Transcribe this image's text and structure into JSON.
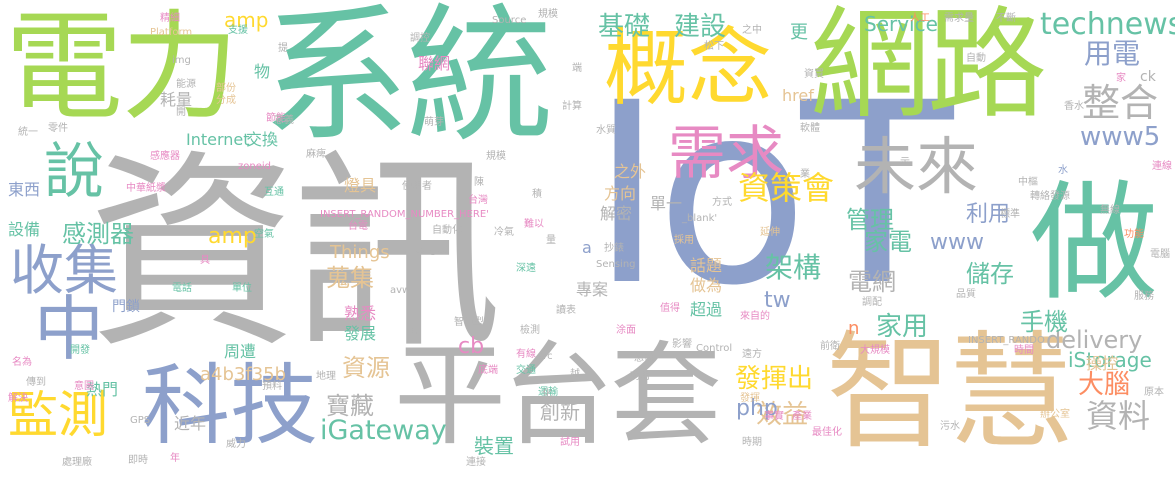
{
  "palette": {
    "green_teal": "#66c2a5",
    "lime": "#a6d854",
    "gold": "#ffd92f",
    "tan": "#e5c494",
    "gray": "#b3b3b3",
    "blue": "#8da0cb",
    "pink": "#e78ac3",
    "orange": "#fc8d62"
  },
  "words": [
    {
      "text": "資訊",
      "color": "gray"
    },
    {
      "text": "IoT",
      "color": "blue"
    },
    {
      "text": "系統",
      "color": "green_teal"
    },
    {
      "text": "電力",
      "color": "lime"
    },
    {
      "text": "網路",
      "color": "lime"
    },
    {
      "text": "平台套",
      "color": "gray"
    },
    {
      "text": "智慧",
      "color": "tan"
    },
    {
      "text": "概念",
      "color": "gold"
    },
    {
      "text": "做",
      "color": "green_teal"
    },
    {
      "text": "科技",
      "color": "blue"
    },
    {
      "text": "中",
      "color": "blue"
    },
    {
      "text": "需求",
      "color": "pink"
    },
    {
      "text": "未來",
      "color": "gray"
    },
    {
      "text": "收集",
      "color": "blue"
    },
    {
      "text": "說",
      "color": "green_teal"
    },
    {
      "text": "監測",
      "color": "gold"
    },
    {
      "text": "整合",
      "color": "gray"
    },
    {
      "text": "資策會",
      "color": "gold"
    },
    {
      "text": "基礎",
      "color": "green_teal"
    },
    {
      "text": "建設",
      "color": "green_teal"
    },
    {
      "text": "technews",
      "color": "green_teal"
    },
    {
      "text": "用電",
      "color": "blue"
    },
    {
      "text": "www5",
      "color": "blue"
    },
    {
      "text": "iGateway",
      "color": "green_teal"
    },
    {
      "text": "資料",
      "color": "gray"
    },
    {
      "text": "架構",
      "color": "green_teal"
    },
    {
      "text": "大腦",
      "color": "orange"
    },
    {
      "text": "delivery",
      "color": "gray"
    },
    {
      "text": "手機",
      "color": "green_teal"
    },
    {
      "text": "家用",
      "color": "green_teal"
    },
    {
      "text": "www",
      "color": "blue"
    },
    {
      "text": "發揮出",
      "color": "gold"
    },
    {
      "text": "寶藏",
      "color": "gray"
    },
    {
      "text": "資源",
      "color": "tan"
    },
    {
      "text": "效益",
      "color": "tan"
    },
    {
      "text": "php",
      "color": "blue"
    },
    {
      "text": "cb",
      "color": "pink"
    },
    {
      "text": "感測器",
      "color": "green_teal"
    },
    {
      "text": "儲存",
      "color": "green_teal"
    },
    {
      "text": "管理",
      "color": "green_teal"
    },
    {
      "text": "家電",
      "color": "green_teal"
    },
    {
      "text": "利用",
      "color": "blue"
    },
    {
      "text": "電網",
      "color": "gray"
    },
    {
      "text": "amp",
      "color": "gold"
    },
    {
      "text": "amp",
      "color": "gold"
    },
    {
      "text": "Service",
      "color": "green_teal"
    },
    {
      "text": "iStorage",
      "color": "green_teal"
    },
    {
      "text": "蒐集",
      "color": "tan"
    },
    {
      "text": "tw",
      "color": "blue"
    },
    {
      "text": "更",
      "color": "green_teal"
    },
    {
      "text": "創新",
      "color": "gray"
    },
    {
      "text": "裝置",
      "color": "green_teal"
    },
    {
      "text": "近年",
      "color": "gray"
    },
    {
      "text": "東西",
      "color": "blue"
    },
    {
      "text": "設備",
      "color": "green_teal"
    },
    {
      "text": "a4b3f35b",
      "color": "tan"
    },
    {
      "text": "周遭",
      "color": "green_teal"
    },
    {
      "text": "熱門",
      "color": "green_teal"
    },
    {
      "text": "燈具",
      "color": "tan"
    },
    {
      "text": "Things",
      "color": "tan"
    },
    {
      "text": "Internet",
      "color": "green_teal"
    },
    {
      "text": "交換",
      "color": "green_teal"
    },
    {
      "text": "耗量",
      "color": "gray"
    },
    {
      "text": "熟悉",
      "color": "pink"
    },
    {
      "text": "發展",
      "color": "green_teal"
    },
    {
      "text": "門鎖",
      "color": "blue"
    },
    {
      "text": "專案",
      "color": "gray"
    },
    {
      "text": "解密",
      "color": "gray"
    },
    {
      "text": "方向",
      "color": "tan"
    },
    {
      "text": "之外",
      "color": "tan"
    },
    {
      "text": "單一",
      "color": "gray"
    },
    {
      "text": "話題",
      "color": "tan"
    },
    {
      "text": "做為",
      "color": "tan"
    },
    {
      "text": "超過",
      "color": "green_teal"
    },
    {
      "text": "操控",
      "color": "tan"
    },
    {
      "text": "n",
      "color": "orange"
    },
    {
      "text": "href",
      "color": "tan"
    },
    {
      "text": "ck",
      "color": "gray"
    },
    {
      "text": "物",
      "color": "green_teal"
    },
    {
      "text": "聯網",
      "color": "pink"
    },
    {
      "text": "a",
      "color": "blue"
    },
    {
      "text": "_blank'",
      "color": "gray"
    },
    {
      "text": "Source",
      "color": "gray"
    },
    {
      "text": "Platform",
      "color": "tan"
    },
    {
      "text": "img",
      "color": "gray"
    },
    {
      "text": "INSERT_RANDOM_NUMBER_HERE'",
      "color": "pink"
    },
    {
      "text": "INSERT_RANDO",
      "color": "gray"
    },
    {
      "text": "zoneid",
      "color": "pink"
    },
    {
      "text": "GPS",
      "color": "gray"
    },
    {
      "text": "Sensing",
      "color": "gray"
    },
    {
      "text": "Control",
      "color": "gray"
    },
    {
      "text": "src",
      "color": "gray"
    },
    {
      "text": "target",
      "color": "gray"
    },
    {
      "text": "avw",
      "color": "gray"
    },
    {
      "text": "智慧型",
      "color": "gray"
    },
    {
      "text": "中華紙漿",
      "color": "pink"
    },
    {
      "text": "感應器",
      "color": "pink"
    },
    {
      "text": "大規模",
      "color": "pink"
    },
    {
      "text": "節能",
      "color": "pink"
    },
    {
      "text": "支援",
      "color": "green_teal"
    },
    {
      "text": "精細",
      "color": "pink"
    },
    {
      "text": "人工",
      "color": "orange"
    },
    {
      "text": "需求量",
      "color": "gray"
    },
    {
      "text": "不斷",
      "color": "gray"
    },
    {
      "text": "規模",
      "color": "gray"
    },
    {
      "text": "調控",
      "color": "gray"
    },
    {
      "text": "提",
      "color": "gray"
    },
    {
      "text": "之中",
      "color": "gray"
    },
    {
      "text": "松下",
      "color": "gray"
    },
    {
      "text": "電話",
      "color": "green_teal"
    },
    {
      "text": "單位",
      "color": "green_teal"
    },
    {
      "text": "空氣",
      "color": "green_teal"
    },
    {
      "text": "台電",
      "color": "pink"
    },
    {
      "text": "地理",
      "color": "gray"
    },
    {
      "text": "交通",
      "color": "green_teal"
    },
    {
      "text": "運輸",
      "color": "green_teal"
    },
    {
      "text": "影響",
      "color": "gray"
    },
    {
      "text": "時間",
      "color": "pink"
    },
    {
      "text": "功能",
      "color": "orange"
    },
    {
      "text": "污水",
      "color": "gray"
    },
    {
      "text": "辦公室",
      "color": "tan"
    },
    {
      "text": "原本",
      "color": "gray"
    },
    {
      "text": "處理廠",
      "color": "gray"
    },
    {
      "text": "連接",
      "color": "gray"
    },
    {
      "text": "即時",
      "color": "gray"
    },
    {
      "text": "年",
      "color": "pink"
    },
    {
      "text": "威力",
      "color": "gray"
    },
    {
      "text": "解決",
      "color": "pink"
    },
    {
      "text": "傳到",
      "color": "gray"
    },
    {
      "text": "名為",
      "color": "pink"
    },
    {
      "text": "開發",
      "color": "green_teal"
    },
    {
      "text": "意圖",
      "color": "pink"
    },
    {
      "text": "預料",
      "color": "gray"
    },
    {
      "text": "統一",
      "color": "gray"
    },
    {
      "text": "零件",
      "color": "gray"
    },
    {
      "text": "能源",
      "color": "gray"
    },
    {
      "text": "部份",
      "color": "tan"
    },
    {
      "text": "分成",
      "color": "tan"
    },
    {
      "text": "意義",
      "color": "gray"
    },
    {
      "text": "萌芽",
      "color": "gray"
    },
    {
      "text": "麻痺",
      "color": "gray"
    },
    {
      "text": "互通",
      "color": "green_teal"
    },
    {
      "text": "使用者",
      "color": "gray"
    },
    {
      "text": "台灣",
      "color": "pink"
    },
    {
      "text": "冷氣",
      "color": "gray"
    },
    {
      "text": "自動化",
      "color": "gray"
    },
    {
      "text": "抄錶",
      "color": "gray"
    },
    {
      "text": "採用",
      "color": "tan"
    },
    {
      "text": "延伸",
      "color": "tan"
    },
    {
      "text": "事實",
      "color": "pink"
    },
    {
      "text": "產業",
      "color": "pink"
    },
    {
      "text": "電腦",
      "color": "gray"
    },
    {
      "text": "服務",
      "color": "gray"
    },
    {
      "text": "品質",
      "color": "gray"
    },
    {
      "text": "調配",
      "color": "gray"
    },
    {
      "text": "標準",
      "color": "gray"
    },
    {
      "text": "無線",
      "color": "gray"
    },
    {
      "text": "發源",
      "color": "gray"
    },
    {
      "text": "轉絡",
      "color": "gray"
    },
    {
      "text": "中樞",
      "color": "gray"
    },
    {
      "text": "連線",
      "color": "pink"
    },
    {
      "text": "示",
      "color": "gray"
    },
    {
      "text": "水",
      "color": "blue"
    },
    {
      "text": "自動",
      "color": "gray"
    },
    {
      "text": "香水",
      "color": "gray"
    },
    {
      "text": "家",
      "color": "pink"
    },
    {
      "text": "資買",
      "color": "gray"
    },
    {
      "text": "軟體",
      "color": "gray"
    },
    {
      "text": "水質",
      "color": "gray"
    },
    {
      "text": "計算",
      "color": "gray"
    },
    {
      "text": "端",
      "color": "gray"
    },
    {
      "text": "想像",
      "color": "gray"
    },
    {
      "text": "功用",
      "color": "gray"
    },
    {
      "text": "最佳化",
      "color": "pink"
    },
    {
      "text": "遠方",
      "color": "gray"
    },
    {
      "text": "前衛",
      "color": "gray"
    },
    {
      "text": "時期",
      "color": "gray"
    },
    {
      "text": "試用",
      "color": "pink"
    },
    {
      "text": "檢測",
      "color": "gray"
    },
    {
      "text": "讀表",
      "color": "gray"
    },
    {
      "text": "涂面",
      "color": "pink"
    },
    {
      "text": "有線",
      "color": "pink"
    },
    {
      "text": "化",
      "color": "gray"
    },
    {
      "text": "控",
      "color": "gray"
    },
    {
      "text": "前",
      "color": "gray"
    },
    {
      "text": "越",
      "color": "gray"
    },
    {
      "text": "底端",
      "color": "pink"
    },
    {
      "text": "深遠",
      "color": "green_teal"
    },
    {
      "text": "量",
      "color": "gray"
    },
    {
      "text": "具",
      "color": "pink"
    },
    {
      "text": "方式",
      "color": "gray"
    },
    {
      "text": "難以",
      "color": "pink"
    },
    {
      "text": "積",
      "color": "gray"
    },
    {
      "text": "值得",
      "color": "pink"
    },
    {
      "text": "來自的",
      "color": "pink"
    },
    {
      "text": "發揮",
      "color": "tan"
    },
    {
      "text": "規模",
      "color": "gray"
    },
    {
      "text": "陳",
      "color": "gray"
    },
    {
      "text": "開",
      "color": "gray"
    },
    {
      "text": "業",
      "color": "gray"
    }
  ]
}
